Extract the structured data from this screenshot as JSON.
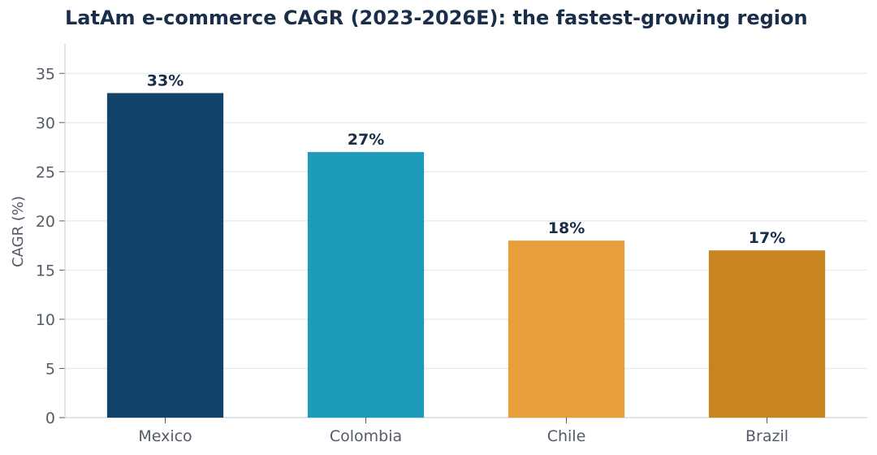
{
  "chart_data": {
    "type": "bar",
    "title": "LatAm e-commerce CAGR (2023-2026E): the fastest-growing region",
    "xlabel": "",
    "ylabel": "CAGR (%)",
    "categories": [
      "Mexico",
      "Colombia",
      "Chile",
      "Brazil"
    ],
    "values": [
      33,
      27,
      18,
      17
    ],
    "data_labels": [
      "33%",
      "27%",
      "18%",
      "17%"
    ],
    "colors": [
      "#12446b",
      "#1d9bb8",
      "#e89f3b",
      "#c78421"
    ],
    "ylim": [
      0,
      38
    ],
    "yticks": [
      0,
      5,
      10,
      15,
      20,
      25,
      30,
      35
    ],
    "grid": true,
    "grid_axis": "y",
    "text_color": "#1a2e4a",
    "axis_text_color": "#555b66"
  }
}
